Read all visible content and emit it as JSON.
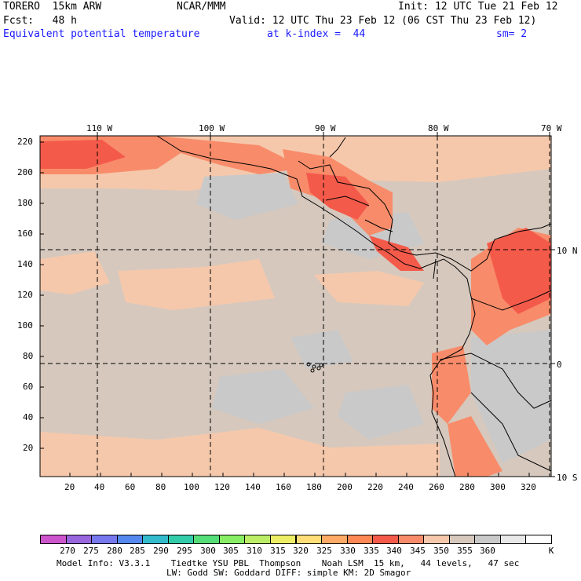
{
  "header": {
    "model": "TORERO  15km ARW",
    "org": "NCAR/MMM",
    "init": "Init: 12 UTC Tue 21 Feb 12",
    "fcst": "Fcst:   48 h",
    "valid": "Valid: 12 UTC Thu 23 Feb 12 (06 CST Thu 23 Feb 12)",
    "field": "Equivalent potential temperature",
    "level": "at k-index =  44",
    "smooth": "sm= 2"
  },
  "map": {
    "lon_labels": [
      "110 W",
      "100 W",
      "90 W",
      "80 W",
      "70 W"
    ],
    "lat_labels": [
      "10 N",
      "0",
      "10 S"
    ],
    "y_ticks": [
      "220",
      "200",
      "180",
      "160",
      "140",
      "120",
      "100",
      "80",
      "60",
      "40",
      "20"
    ],
    "x_ticks": [
      "20",
      "40",
      "60",
      "80",
      "100",
      "120",
      "140",
      "160",
      "180",
      "200",
      "220",
      "240",
      "260",
      "280",
      "300",
      "320"
    ],
    "colors": {
      "base": "#d6c8bd",
      "warm": "#f5c8ac",
      "cool": "#c9c9c9",
      "hot": "#f88c6a",
      "hotter": "#f45a4a"
    }
  },
  "colorbar": {
    "labels": [
      "270",
      "275",
      "280",
      "285",
      "290",
      "295",
      "300",
      "305",
      "310",
      "315",
      "320",
      "325",
      "330",
      "335",
      "340",
      "345",
      "350",
      "355",
      "360"
    ],
    "unit": "K",
    "colors": [
      "#cc55cc",
      "#9966dd",
      "#7777ee",
      "#5588ee",
      "#33bbcc",
      "#33ccaa",
      "#55dd77",
      "#88ee66",
      "#bbee66",
      "#eeee66",
      "#ffdd77",
      "#ffaa66",
      "#ff8855",
      "#f45a4a",
      "#f88c6a",
      "#f5c8ac",
      "#d6c8bd",
      "#c9c9c9",
      "#e8e8e8",
      "#ffffff"
    ]
  },
  "footer": {
    "line1": "Model Info: V3.3.1    Tiedtke YSU PBL  Thompson    Noah LSM  15 km,   44 levels,   47 sec",
    "line2": "LW: Godd SW: Goddard DIFF: simple KM: 2D Smagor"
  }
}
